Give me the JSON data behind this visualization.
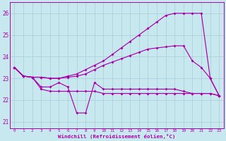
{
  "xlabel": "Windchill (Refroidissement éolien,°C)",
  "bg_color": "#c8e8f0",
  "grid_color": "#a8ccd8",
  "line_color": "#aa00aa",
  "xlim": [
    -0.5,
    23.5
  ],
  "ylim": [
    20.7,
    26.5
  ],
  "yticks": [
    21,
    22,
    23,
    24,
    25,
    26
  ],
  "xticks": [
    0,
    1,
    2,
    3,
    4,
    5,
    6,
    7,
    8,
    9,
    10,
    11,
    12,
    13,
    14,
    15,
    16,
    17,
    18,
    19,
    20,
    21,
    22,
    23
  ],
  "lines": [
    {
      "x": [
        0,
        1,
        2,
        3,
        4,
        5,
        6,
        7,
        8,
        9,
        10,
        11,
        12,
        13,
        14,
        15,
        16,
        17,
        18,
        19,
        20,
        21,
        22,
        23
      ],
      "y": [
        23.5,
        23.1,
        23.05,
        23.05,
        23.0,
        23.0,
        23.1,
        23.2,
        23.4,
        23.6,
        23.8,
        24.1,
        24.4,
        24.7,
        25.0,
        25.3,
        25.6,
        25.9,
        26.0,
        26.0,
        26.0,
        26.0,
        23.0,
        22.2
      ]
    },
    {
      "x": [
        0,
        1,
        2,
        3,
        4,
        5,
        6,
        7,
        8,
        9,
        10,
        11,
        12,
        13,
        14,
        15,
        16,
        17,
        18,
        19,
        20,
        21,
        22,
        23
      ],
      "y": [
        23.5,
        23.1,
        23.05,
        23.05,
        23.0,
        23.0,
        23.05,
        23.1,
        23.2,
        23.4,
        23.6,
        23.75,
        23.9,
        24.05,
        24.2,
        24.35,
        24.4,
        24.45,
        24.5,
        24.5,
        23.8,
        23.5,
        23.0,
        22.2
      ]
    },
    {
      "x": [
        0,
        1,
        2,
        3,
        4,
        5,
        6,
        7,
        8,
        9,
        10,
        11,
        12,
        13,
        14,
        15,
        16,
        17,
        18,
        19,
        20,
        21,
        22,
        23
      ],
      "y": [
        23.5,
        23.1,
        23.05,
        22.5,
        22.4,
        22.4,
        22.4,
        22.4,
        22.4,
        22.4,
        22.3,
        22.3,
        22.3,
        22.3,
        22.3,
        22.3,
        22.3,
        22.3,
        22.3,
        22.3,
        22.3,
        22.3,
        22.3,
        22.2
      ]
    },
    {
      "x": [
        0,
        1,
        2,
        3,
        4,
        5,
        6,
        7,
        8,
        9,
        10,
        11,
        12,
        13,
        14,
        15,
        16,
        17,
        18,
        19,
        20,
        21,
        22,
        23
      ],
      "y": [
        23.5,
        23.1,
        23.05,
        22.6,
        22.6,
        22.8,
        22.6,
        21.4,
        21.4,
        22.8,
        22.5,
        22.5,
        22.5,
        22.5,
        22.5,
        22.5,
        22.5,
        22.5,
        22.5,
        22.4,
        22.3,
        22.3,
        22.3,
        22.2
      ]
    }
  ]
}
